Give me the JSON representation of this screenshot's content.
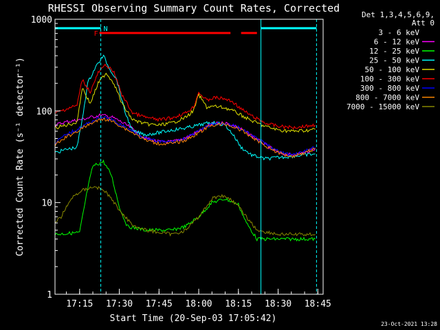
{
  "chart_data": {
    "type": "line",
    "title": "RHESSI Observing Summary Count Rates, Corrected",
    "xlabel": "Start Time (20-Sep-03 17:05:42)",
    "ylabel": "Corrected Count Rate (s⁻¹ detector⁻¹)",
    "yscale": "log",
    "ylim": [
      1,
      1000
    ],
    "xlim": [
      "17:05:42",
      "18:47:00"
    ],
    "x_ticks": [
      "17:15",
      "17:30",
      "17:45",
      "18:00",
      "18:15",
      "18:30",
      "18:45"
    ],
    "y_ticks": [
      "1",
      "10",
      "100",
      "1000"
    ],
    "timestamp": "23-Oct-2021 13:28",
    "legend": {
      "position": "right",
      "header": [
        "Det 1,3,4,5,6,9,",
        "Att 0"
      ]
    },
    "flags": [
      {
        "label": "F",
        "color": "#ff0000",
        "segments": [
          [
            "17:22:30",
            "18:12:00"
          ],
          [
            "18:16:00",
            "18:22:00"
          ]
        ]
      },
      {
        "label": "N",
        "color": "#00ffff",
        "segments": [
          [
            "17:05:42",
            "17:23:00"
          ],
          [
            "18:23:30",
            "18:44:30"
          ]
        ]
      }
    ],
    "series": [
      {
        "name": "3 - 6 keV",
        "color": "#000000",
        "points": [
          [
            "17:05:42",
            72
          ],
          [
            "17:10",
            78
          ],
          [
            "17:15",
            82
          ],
          [
            "17:20",
            88
          ],
          [
            "17:23",
            92
          ],
          [
            "17:27",
            88
          ],
          [
            "17:30",
            80
          ],
          [
            "17:35",
            66
          ],
          [
            "17:40",
            52
          ],
          [
            "17:45",
            47
          ],
          [
            "17:50",
            47
          ],
          [
            "17:55",
            52
          ],
          [
            "18:00",
            62
          ],
          [
            "18:05",
            74
          ],
          [
            "18:10",
            76
          ],
          [
            "18:15",
            68
          ],
          [
            "18:20",
            56
          ],
          [
            "18:25",
            44
          ],
          [
            "18:30",
            36
          ],
          [
            "18:35",
            34
          ],
          [
            "18:40",
            36
          ],
          [
            "18:44",
            40
          ]
        ]
      },
      {
        "name": "6 - 12 keV",
        "color": "#ff00ff",
        "points": [
          [
            "17:05:42",
            70
          ],
          [
            "17:10",
            76
          ],
          [
            "17:15",
            80
          ],
          [
            "17:20",
            86
          ],
          [
            "17:23",
            90
          ],
          [
            "17:27",
            86
          ],
          [
            "17:30",
            78
          ],
          [
            "17:35",
            64
          ],
          [
            "17:40",
            50
          ],
          [
            "17:45",
            46
          ],
          [
            "17:50",
            46
          ],
          [
            "17:55",
            51
          ],
          [
            "18:00",
            60
          ],
          [
            "18:05",
            72
          ],
          [
            "18:10",
            74
          ],
          [
            "18:15",
            66
          ],
          [
            "18:20",
            54
          ],
          [
            "18:25",
            43
          ],
          [
            "18:30",
            35
          ],
          [
            "18:35",
            33
          ],
          [
            "18:40",
            35
          ],
          [
            "18:44",
            39
          ]
        ]
      },
      {
        "name": "12 - 25 keV",
        "color": "#00ff00",
        "points": [
          [
            "17:05:42",
            4.5
          ],
          [
            "17:10",
            4.6
          ],
          [
            "17:15",
            4.7
          ],
          [
            "17:18",
            14
          ],
          [
            "17:20",
            25
          ],
          [
            "17:24",
            28
          ],
          [
            "17:27",
            20
          ],
          [
            "17:30",
            9
          ],
          [
            "17:33",
            5.5
          ],
          [
            "17:40",
            5
          ],
          [
            "17:50",
            5
          ],
          [
            "17:55",
            5.5
          ],
          [
            "18:00",
            7
          ],
          [
            "18:05",
            10
          ],
          [
            "18:10",
            11
          ],
          [
            "18:15",
            9.5
          ],
          [
            "18:18",
            6
          ],
          [
            "18:22",
            4
          ],
          [
            "18:30",
            4
          ],
          [
            "18:44",
            4
          ]
        ]
      },
      {
        "name": "25 - 50 keV",
        "color": "#00ffff",
        "points": [
          [
            "17:05:42",
            35
          ],
          [
            "17:10",
            38
          ],
          [
            "17:14",
            40
          ],
          [
            "17:16",
            80
          ],
          [
            "17:18",
            200
          ],
          [
            "17:21",
            300
          ],
          [
            "17:24",
            400
          ],
          [
            "17:26",
            300
          ],
          [
            "17:29",
            220
          ],
          [
            "17:32",
            100
          ],
          [
            "17:35",
            60
          ],
          [
            "17:40",
            55
          ],
          [
            "17:45",
            58
          ],
          [
            "17:50",
            62
          ],
          [
            "17:55",
            65
          ],
          [
            "18:00",
            70
          ],
          [
            "18:05",
            75
          ],
          [
            "18:10",
            70
          ],
          [
            "18:13",
            55
          ],
          [
            "18:16",
            40
          ],
          [
            "18:20",
            33
          ],
          [
            "18:25",
            30
          ],
          [
            "18:30",
            31
          ],
          [
            "18:35",
            32
          ],
          [
            "18:40",
            33
          ],
          [
            "18:44",
            34
          ]
        ]
      },
      {
        "name": "50 - 100 keV",
        "color": "#e0e000",
        "points": [
          [
            "17:05:42",
            65
          ],
          [
            "17:10",
            70
          ],
          [
            "17:14",
            75
          ],
          [
            "17:16",
            180
          ],
          [
            "17:19",
            120
          ],
          [
            "17:22",
            200
          ],
          [
            "17:25",
            260
          ],
          [
            "17:28",
            200
          ],
          [
            "17:31",
            120
          ],
          [
            "17:35",
            80
          ],
          [
            "17:40",
            72
          ],
          [
            "17:45",
            70
          ],
          [
            "17:50",
            74
          ],
          [
            "17:55",
            85
          ],
          [
            "17:58",
            100
          ],
          [
            "18:00",
            150
          ],
          [
            "18:03",
            110
          ],
          [
            "18:06",
            112
          ],
          [
            "18:10",
            108
          ],
          [
            "18:13",
            100
          ],
          [
            "18:16",
            90
          ],
          [
            "18:20",
            78
          ],
          [
            "18:25",
            68
          ],
          [
            "18:30",
            62
          ],
          [
            "18:35",
            60
          ],
          [
            "18:40",
            61
          ],
          [
            "18:44",
            63
          ]
        ]
      },
      {
        "name": "100 - 300 keV",
        "color": "#ff0000",
        "points": [
          [
            "17:05:42",
            95
          ],
          [
            "17:10",
            105
          ],
          [
            "17:14",
            115
          ],
          [
            "17:16",
            220
          ],
          [
            "17:19",
            160
          ],
          [
            "17:22",
            260
          ],
          [
            "17:25",
            320
          ],
          [
            "17:28",
            260
          ],
          [
            "17:31",
            150
          ],
          [
            "17:35",
            95
          ],
          [
            "17:40",
            85
          ],
          [
            "17:45",
            80
          ],
          [
            "17:50",
            84
          ],
          [
            "17:55",
            95
          ],
          [
            "17:58",
            110
          ],
          [
            "18:00",
            160
          ],
          [
            "18:03",
            130
          ],
          [
            "18:06",
            140
          ],
          [
            "18:10",
            135
          ],
          [
            "18:13",
            125
          ],
          [
            "18:16",
            105
          ],
          [
            "18:20",
            88
          ],
          [
            "18:25",
            74
          ],
          [
            "18:30",
            68
          ],
          [
            "18:35",
            66
          ],
          [
            "18:40",
            68
          ],
          [
            "18:44",
            70
          ]
        ]
      },
      {
        "name": "300 - 800 keV",
        "color": "#0000ff",
        "points": [
          [
            "17:05:42",
            45
          ],
          [
            "17:10",
            55
          ],
          [
            "17:15",
            65
          ],
          [
            "17:20",
            78
          ],
          [
            "17:24",
            85
          ],
          [
            "17:27",
            80
          ],
          [
            "17:30",
            72
          ],
          [
            "17:35",
            60
          ],
          [
            "17:40",
            50
          ],
          [
            "17:45",
            46
          ],
          [
            "17:50",
            46
          ],
          [
            "17:55",
            50
          ],
          [
            "18:00",
            60
          ],
          [
            "18:05",
            72
          ],
          [
            "18:10",
            74
          ],
          [
            "18:15",
            66
          ],
          [
            "18:20",
            54
          ],
          [
            "18:25",
            44
          ],
          [
            "18:30",
            36
          ],
          [
            "18:35",
            33
          ],
          [
            "18:40",
            36
          ],
          [
            "18:44",
            40
          ]
        ]
      },
      {
        "name": "800 - 7000 keV",
        "color": "#ff8800",
        "points": [
          [
            "17:05:42",
            42
          ],
          [
            "17:10",
            52
          ],
          [
            "17:15",
            62
          ],
          [
            "17:20",
            75
          ],
          [
            "17:24",
            82
          ],
          [
            "17:27",
            78
          ],
          [
            "17:30",
            70
          ],
          [
            "17:35",
            58
          ],
          [
            "17:40",
            48
          ],
          [
            "17:45",
            44
          ],
          [
            "17:50",
            44
          ],
          [
            "17:55",
            48
          ],
          [
            "18:00",
            58
          ],
          [
            "18:05",
            70
          ],
          [
            "18:10",
            72
          ],
          [
            "18:15",
            64
          ],
          [
            "18:20",
            52
          ],
          [
            "18:25",
            42
          ],
          [
            "18:30",
            35
          ],
          [
            "18:35",
            32
          ],
          [
            "18:40",
            35
          ],
          [
            "18:44",
            39
          ]
        ]
      },
      {
        "name": "7000 - 15000 keV",
        "color": "#888800",
        "points": [
          [
            "17:05:42",
            6
          ],
          [
            "17:08",
            7
          ],
          [
            "17:10",
            9
          ],
          [
            "17:13",
            12
          ],
          [
            "17:17",
            14
          ],
          [
            "17:21",
            15
          ],
          [
            "17:25",
            13
          ],
          [
            "17:28",
            10
          ],
          [
            "17:32",
            7
          ],
          [
            "17:36",
            5.5
          ],
          [
            "17:40",
            5
          ],
          [
            "17:50",
            4.5
          ],
          [
            "17:55",
            5
          ],
          [
            "18:00",
            7
          ],
          [
            "18:05",
            11
          ],
          [
            "18:08",
            12
          ],
          [
            "18:12",
            11
          ],
          [
            "18:15",
            9
          ],
          [
            "18:18",
            7
          ],
          [
            "18:22",
            5
          ],
          [
            "18:30",
            4.5
          ],
          [
            "18:44",
            4.5
          ]
        ]
      }
    ]
  }
}
